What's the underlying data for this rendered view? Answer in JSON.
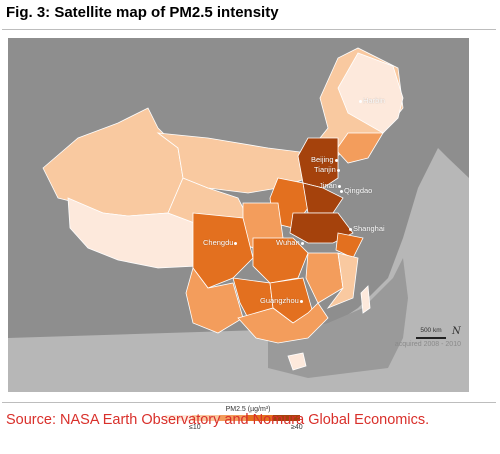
{
  "figure": {
    "title": "Fig. 3: Satellite map of PM2.5 intensity",
    "source": "Source: NASA Earth Observatory and Nomura Global Economics."
  },
  "map": {
    "acquired": "acquired 2008 - 2010",
    "scale": "500 km",
    "north_symbol": "N",
    "cities": [
      {
        "name": "Harbin"
      },
      {
        "name": "Beijing"
      },
      {
        "name": "Tianjin"
      },
      {
        "name": "Jinan"
      },
      {
        "name": "Qingdao"
      },
      {
        "name": "Shanghai"
      },
      {
        "name": "Chengdu"
      },
      {
        "name": "Wuhan"
      },
      {
        "name": "Guangzhou"
      }
    ],
    "colors": {
      "ocean": "#b7b7b7",
      "foreign_land": "#8e8e8e",
      "level_1": "#fde9dc",
      "level_2": "#f9c9a0",
      "level_3": "#f39d5c",
      "level_4": "#e3701f",
      "level_5": "#a5420c",
      "source_text": "#d9302b"
    }
  },
  "legend": {
    "title": "PM2.5 (µg/m³)",
    "min_label": "≤10",
    "max_label": "≥40",
    "swatches": [
      "#fde9dc",
      "#f9c9a0",
      "#f39d5c",
      "#e3701f",
      "#a5420c"
    ]
  }
}
